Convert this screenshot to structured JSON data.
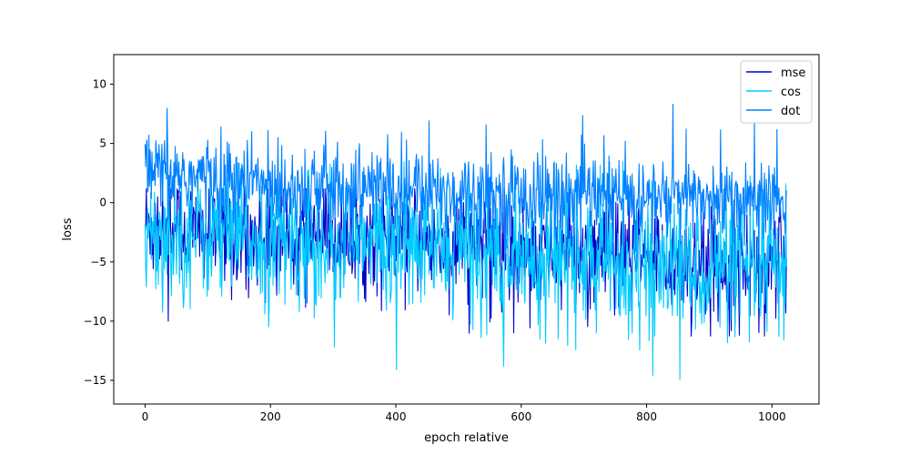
{
  "chart_data": {
    "type": "line",
    "title": "",
    "xlabel": "epoch relative",
    "ylabel": "loss",
    "xlim": [
      -50,
      1075
    ],
    "ylim": [
      -17,
      12.5
    ],
    "x_ticks": [
      0,
      200,
      400,
      600,
      800,
      1000
    ],
    "y_ticks": [
      10,
      5,
      0,
      -5,
      -10,
      -15
    ],
    "grid": false,
    "legend_position": "top-right",
    "n_points": 1024,
    "series": [
      {
        "name": "mse",
        "color": "#0000cc",
        "x": [
          0,
          25,
          50,
          75,
          100,
          125,
          150,
          175,
          200,
          225,
          250,
          275,
          300,
          325,
          350,
          375,
          400,
          425,
          450,
          475,
          500,
          525,
          550,
          575,
          600,
          625,
          650,
          675,
          700,
          725,
          750,
          775,
          800,
          825,
          850,
          875,
          900,
          925,
          950,
          975,
          1000,
          1023
        ],
        "mean": [
          -1.8,
          -2.1,
          -2.3,
          -2.5,
          -2.3,
          -2.6,
          -2.7,
          -2.8,
          -2.8,
          -2.9,
          -3.0,
          -2.9,
          -3.0,
          -3.1,
          -3.2,
          -3.1,
          -3.2,
          -3.2,
          -3.3,
          -3.4,
          -3.5,
          -3.6,
          -3.7,
          -3.8,
          -4.0,
          -4.1,
          -4.3,
          -4.4,
          -4.5,
          -4.6,
          -4.7,
          -4.8,
          -4.9,
          -5.0,
          -5.0,
          -5.1,
          -5.1,
          -5.1,
          -5.2,
          -5.2,
          -5.2,
          -5.2
        ],
        "spread": 2.3,
        "min": -11.3,
        "max": 1.2
      },
      {
        "name": "cos",
        "color": "#00ccff",
        "x": [
          0,
          25,
          50,
          75,
          100,
          125,
          150,
          175,
          200,
          225,
          250,
          275,
          300,
          325,
          350,
          375,
          400,
          425,
          450,
          475,
          500,
          525,
          550,
          575,
          600,
          625,
          650,
          675,
          700,
          725,
          750,
          775,
          800,
          825,
          850,
          875,
          900,
          925,
          950,
          975,
          1000,
          1023
        ],
        "mean": [
          -2.0,
          -2.3,
          -2.5,
          -2.8,
          -2.6,
          -2.9,
          -3.0,
          -3.1,
          -3.2,
          -3.3,
          -3.3,
          -3.3,
          -3.4,
          -3.5,
          -3.6,
          -3.5,
          -3.6,
          -3.7,
          -3.7,
          -3.8,
          -3.9,
          -4.1,
          -4.2,
          -4.3,
          -4.5,
          -4.6,
          -4.8,
          -4.9,
          -5.0,
          -5.1,
          -5.2,
          -5.3,
          -5.4,
          -5.5,
          -5.5,
          -5.6,
          -5.6,
          -5.7,
          -5.7,
          -5.7,
          -5.7,
          -5.7
        ],
        "spread": 2.8,
        "min": -16.0,
        "max": 3.5
      },
      {
        "name": "dot",
        "color": "#0080ff",
        "x": [
          0,
          25,
          50,
          75,
          100,
          125,
          150,
          175,
          200,
          225,
          250,
          275,
          300,
          325,
          350,
          375,
          400,
          425,
          450,
          475,
          500,
          525,
          550,
          575,
          600,
          625,
          650,
          675,
          700,
          725,
          750,
          775,
          800,
          825,
          850,
          875,
          900,
          925,
          950,
          975,
          1000,
          1023
        ],
        "mean": [
          2.3,
          2.4,
          2.3,
          2.2,
          2.0,
          1.9,
          1.8,
          1.7,
          1.6,
          1.6,
          1.5,
          1.4,
          1.3,
          1.3,
          1.2,
          1.2,
          1.1,
          1.0,
          1.0,
          0.9,
          0.9,
          0.8,
          0.8,
          0.7,
          0.7,
          0.6,
          0.6,
          0.5,
          0.5,
          0.5,
          0.4,
          0.4,
          0.4,
          0.3,
          0.3,
          0.3,
          0.3,
          0.3,
          0.3,
          0.3,
          0.3,
          0.3
        ],
        "spread": 1.8,
        "min": -15.6,
        "max": 11.3
      }
    ]
  }
}
